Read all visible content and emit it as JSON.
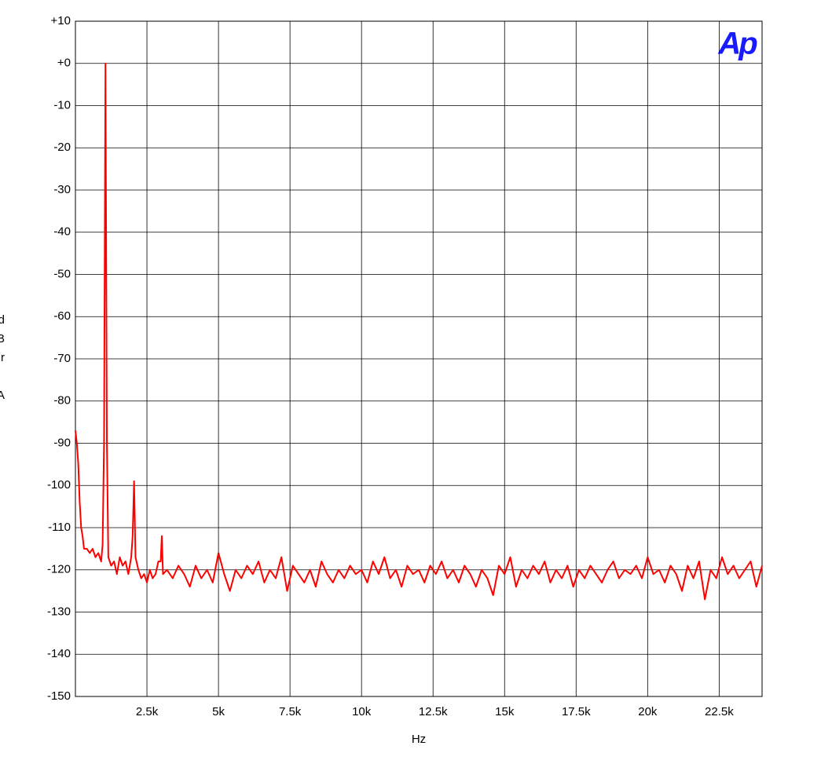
{
  "chart_data": {
    "type": "line",
    "logo": "Ap",
    "x_label": "Hz",
    "y_label": "dBr A",
    "xlim": [
      0,
      24000
    ],
    "xticks": [
      {
        "value": 2500,
        "label": "2.5k"
      },
      {
        "value": 5000,
        "label": "5k"
      },
      {
        "value": 7500,
        "label": "7.5k"
      },
      {
        "value": 10000,
        "label": "10k"
      },
      {
        "value": 12500,
        "label": "12.5k"
      },
      {
        "value": 15000,
        "label": "15k"
      },
      {
        "value": 17500,
        "label": "17.5k"
      },
      {
        "value": 20000,
        "label": "20k"
      },
      {
        "value": 22500,
        "label": "22.5k"
      }
    ],
    "ylim": [
      -150,
      10
    ],
    "yticks": [
      {
        "value": 10,
        "label": "+10"
      },
      {
        "value": 0,
        "label": "+0"
      },
      -10,
      -20,
      -30,
      -40,
      -50,
      -60,
      -70,
      -80,
      -90,
      -100,
      -110,
      -120,
      -130,
      -140,
      -150
    ],
    "grid": true,
    "series": [
      {
        "color": "#ff0000",
        "x": [
          0,
          50,
          100,
          150,
          200,
          250,
          300,
          400,
          500,
          600,
          700,
          800,
          900,
          950,
          1000,
          1050,
          1100,
          1150,
          1250,
          1350,
          1450,
          1550,
          1650,
          1750,
          1850,
          1950,
          2000,
          2050,
          2100,
          2200,
          2300,
          2400,
          2500,
          2600,
          2700,
          2800,
          2900,
          2980,
          3020,
          3060,
          3200,
          3400,
          3600,
          3800,
          4000,
          4200,
          4400,
          4600,
          4800,
          5000,
          5200,
          5400,
          5600,
          5800,
          6000,
          6200,
          6400,
          6600,
          6800,
          7000,
          7200,
          7400,
          7600,
          7800,
          8000,
          8200,
          8400,
          8600,
          8800,
          9000,
          9200,
          9400,
          9600,
          9800,
          10000,
          10200,
          10400,
          10600,
          10800,
          11000,
          11200,
          11400,
          11600,
          11800,
          12000,
          12200,
          12400,
          12600,
          12800,
          13000,
          13200,
          13400,
          13600,
          13800,
          14000,
          14200,
          14400,
          14600,
          14800,
          15000,
          15200,
          15400,
          15600,
          15800,
          16000,
          16200,
          16400,
          16600,
          16800,
          17000,
          17200,
          17400,
          17600,
          17800,
          18000,
          18200,
          18400,
          18600,
          18800,
          19000,
          19200,
          19400,
          19600,
          19800,
          20000,
          20200,
          20400,
          20600,
          20800,
          21000,
          21200,
          21400,
          21600,
          21800,
          22000,
          22200,
          22400,
          22600,
          22800,
          23000,
          23200,
          23400,
          23600,
          23800,
          24000
        ],
        "values": [
          -87,
          -90,
          -95,
          -104,
          -110,
          -112,
          -115,
          -115,
          -116,
          -115,
          -117,
          -116,
          -118,
          -114,
          -90,
          0,
          -90,
          -117,
          -119,
          -118,
          -121,
          -117,
          -119,
          -118,
          -121,
          -117,
          -112,
          -99,
          -117,
          -120,
          -122,
          -121,
          -123,
          -120,
          -122,
          -121,
          -118,
          -118,
          -112,
          -121,
          -120,
          -122,
          -119,
          -121,
          -124,
          -119,
          -122,
          -120,
          -123,
          -116,
          -121,
          -125,
          -120,
          -122,
          -119,
          -121,
          -118,
          -123,
          -120,
          -122,
          -117,
          -125,
          -119,
          -121,
          -123,
          -120,
          -124,
          -118,
          -121,
          -123,
          -120,
          -122,
          -119,
          -121,
          -120,
          -123,
          -118,
          -121,
          -117,
          -122,
          -120,
          -124,
          -119,
          -121,
          -120,
          -123,
          -119,
          -121,
          -118,
          -122,
          -120,
          -123,
          -119,
          -121,
          -124,
          -120,
          -122,
          -126,
          -119,
          -121,
          -117,
          -124,
          -120,
          -122,
          -119,
          -121,
          -118,
          -123,
          -120,
          -122,
          -119,
          -124,
          -120,
          -122,
          -119,
          -121,
          -123,
          -120,
          -118,
          -122,
          -120,
          -121,
          -119,
          -122,
          -117,
          -121,
          -120,
          -123,
          -119,
          -121,
          -125,
          -119,
          -122,
          -118,
          -127,
          -120,
          -122,
          -117,
          -121,
          -119,
          -122,
          -120,
          -118,
          -124,
          -119
        ]
      }
    ]
  }
}
